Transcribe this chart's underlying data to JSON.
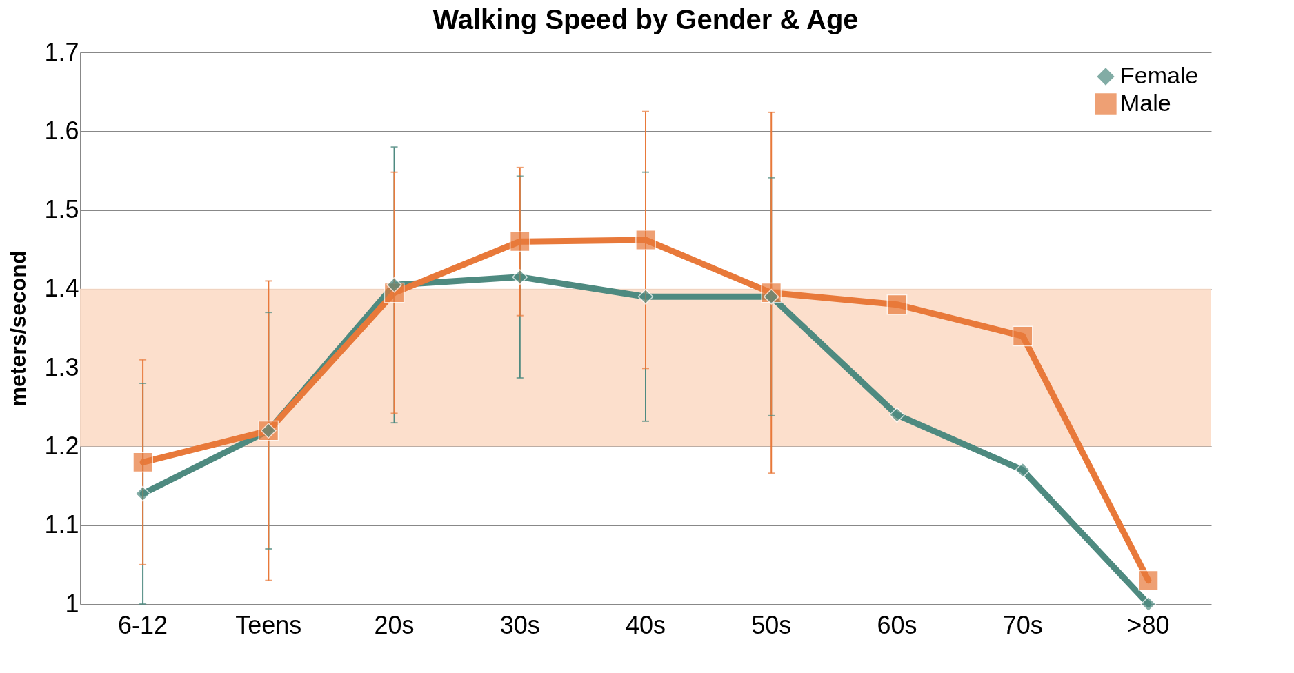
{
  "chart_data": {
    "type": "line",
    "title": "Walking Speed by Gender & Age",
    "ylabel": "meters/second",
    "categories": [
      "6-12",
      "Teens",
      "20s",
      "30s",
      "40s",
      "50s",
      "60s",
      "70s",
      ">80"
    ],
    "series": [
      {
        "name": "Female",
        "color": "#4e8a80",
        "marker": "diamond",
        "values": [
          1.14,
          1.22,
          1.405,
          1.415,
          1.39,
          1.39,
          1.24,
          1.17,
          1.0
        ],
        "errors": [
          0.14,
          0.15,
          0.175,
          0.128,
          0.158,
          0.151,
          null,
          null,
          null
        ]
      },
      {
        "name": "Male",
        "color": "#e8793a",
        "marker": "square",
        "values": [
          1.18,
          1.22,
          1.395,
          1.46,
          1.462,
          1.395,
          1.38,
          1.34,
          1.03
        ],
        "errors": [
          0.13,
          0.19,
          0.153,
          0.094,
          0.163,
          0.229,
          null,
          null,
          null
        ]
      }
    ],
    "ylim": [
      1,
      1.7
    ],
    "yticks": [
      1,
      1.1,
      1.2,
      1.3,
      1.4,
      1.5,
      1.6,
      1.7
    ],
    "grid": "y",
    "legend": "right",
    "bands": [
      {
        "axis": "y",
        "from": 1.2,
        "to": 1.4,
        "color": "#fcdcc6"
      }
    ]
  }
}
